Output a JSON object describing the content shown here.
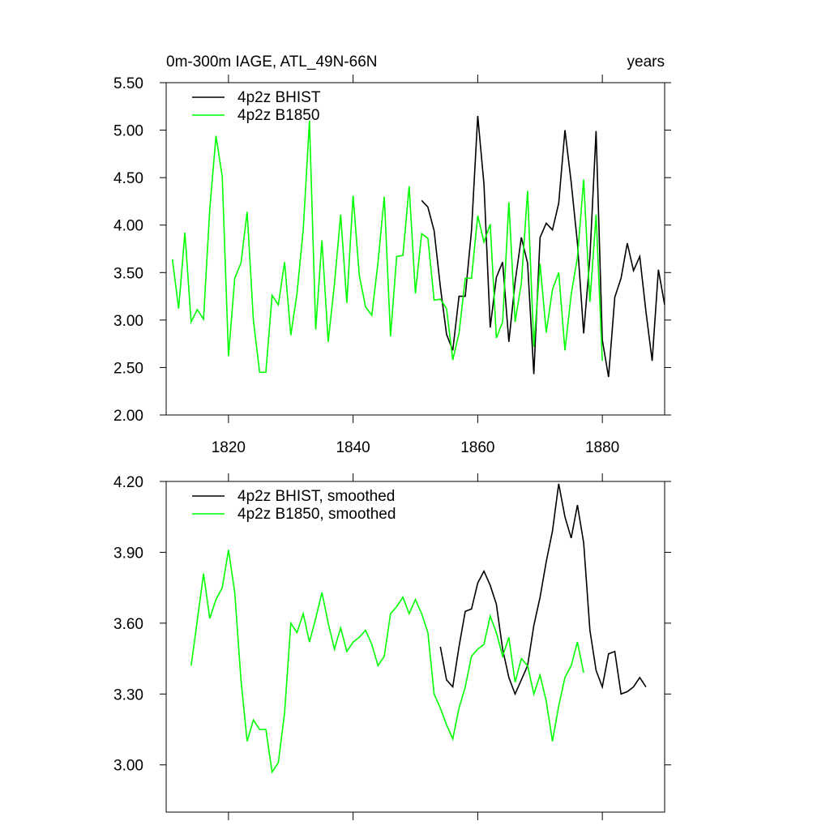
{
  "chart_data": [
    {
      "type": "line",
      "title": "0m-300m IAGE, ATL_49N-66N",
      "right_title": "years",
      "xlim": [
        1810,
        1890
      ],
      "xticks": [
        1820,
        1840,
        1860,
        1880
      ],
      "ylim": [
        2.0,
        5.5
      ],
      "yticks": [
        {
          "value": 2.0,
          "label": "2.00"
        },
        {
          "value": 2.5,
          "label": "2.50"
        },
        {
          "value": 3.0,
          "label": "3.00"
        },
        {
          "value": 3.5,
          "label": "3.50"
        },
        {
          "value": 4.0,
          "label": "4.00"
        },
        {
          "value": 4.5,
          "label": "4.50"
        },
        {
          "value": 5.0,
          "label": "5.00"
        },
        {
          "value": 5.5,
          "label": "5.50"
        }
      ],
      "legend": "upper-left",
      "series": [
        {
          "name": "4p2z BHIST",
          "color": "#000000",
          "x0": 1851,
          "values": [
            4.26,
            4.19,
            3.94,
            3.35,
            2.85,
            2.68,
            3.25,
            3.25,
            3.94,
            5.15,
            4.43,
            2.92,
            3.45,
            3.61,
            2.77,
            3.4,
            3.87,
            3.6,
            2.43,
            3.87,
            4.02,
            3.95,
            4.23,
            5.0,
            4.45,
            3.81,
            2.86,
            3.66,
            4.99,
            2.79,
            2.4,
            3.24,
            3.44,
            3.81,
            3.52,
            3.67,
            3.09,
            2.57,
            3.53,
            3.16
          ]
        },
        {
          "name": "4p2z B1850",
          "color": "#00ff00",
          "x0": 1811,
          "values": [
            3.64,
            3.12,
            3.92,
            2.98,
            3.11,
            3.01,
            4.17,
            4.94,
            4.51,
            2.62,
            3.44,
            3.6,
            4.14,
            3.0,
            2.45,
            2.45,
            3.26,
            3.16,
            3.61,
            2.84,
            3.28,
            3.95,
            5.1,
            2.9,
            3.84,
            2.77,
            3.38,
            4.11,
            3.18,
            4.31,
            3.47,
            3.14,
            3.05,
            3.61,
            4.3,
            2.83,
            3.67,
            3.68,
            4.41,
            3.28,
            3.91,
            3.86,
            3.21,
            3.22,
            3.12,
            2.58,
            2.86,
            3.44,
            3.44,
            4.1,
            3.82,
            4.01,
            2.81,
            2.98,
            4.24,
            2.98,
            3.39,
            4.36,
            2.72,
            3.59,
            2.87,
            3.32,
            3.5,
            2.68,
            3.27,
            3.66,
            4.48,
            3.19,
            4.11,
            2.57
          ]
        }
      ]
    },
    {
      "type": "line",
      "xlim": [
        1810,
        1890
      ],
      "xticks": [
        1820,
        1840,
        1860,
        1880
      ],
      "ylim": [
        2.8,
        4.2
      ],
      "yticks": [
        {
          "value": 3.0,
          "label": "3.00"
        },
        {
          "value": 3.3,
          "label": "3.30"
        },
        {
          "value": 3.6,
          "label": "3.60"
        },
        {
          "value": 3.9,
          "label": "3.90"
        },
        {
          "value": 4.2,
          "label": "4.20"
        }
      ],
      "legend": "upper-left",
      "series": [
        {
          "name": "4p2z BHIST, smoothed",
          "color": "#000000",
          "x0": 1854,
          "values": [
            3.5,
            3.36,
            3.33,
            3.5,
            3.65,
            3.66,
            3.77,
            3.82,
            3.76,
            3.68,
            3.49,
            3.37,
            3.3,
            3.36,
            3.42,
            3.59,
            3.71,
            3.86,
            3.99,
            4.19,
            4.05,
            3.96,
            4.1,
            3.94,
            3.57,
            3.4,
            3.33,
            3.47,
            3.48,
            3.3,
            3.31,
            3.33,
            3.37,
            3.33
          ]
        },
        {
          "name": "4p2z B1850, smoothed",
          "color": "#00ff00",
          "x0": 1814,
          "values": [
            3.42,
            3.61,
            3.81,
            3.62,
            3.7,
            3.75,
            3.91,
            3.73,
            3.36,
            3.1,
            3.19,
            3.15,
            3.15,
            2.97,
            3.01,
            3.22,
            3.6,
            3.56,
            3.64,
            3.52,
            3.62,
            3.73,
            3.6,
            3.49,
            3.58,
            3.48,
            3.52,
            3.54,
            3.57,
            3.51,
            3.42,
            3.46,
            3.64,
            3.67,
            3.71,
            3.64,
            3.7,
            3.64,
            3.56,
            3.3,
            3.24,
            3.17,
            3.11,
            3.24,
            3.33,
            3.46,
            3.49,
            3.51,
            3.63,
            3.56,
            3.46,
            3.54,
            3.35,
            3.45,
            3.42,
            3.3,
            3.38,
            3.27,
            3.1,
            3.25,
            3.37,
            3.42,
            3.52,
            3.39
          ]
        }
      ]
    }
  ]
}
